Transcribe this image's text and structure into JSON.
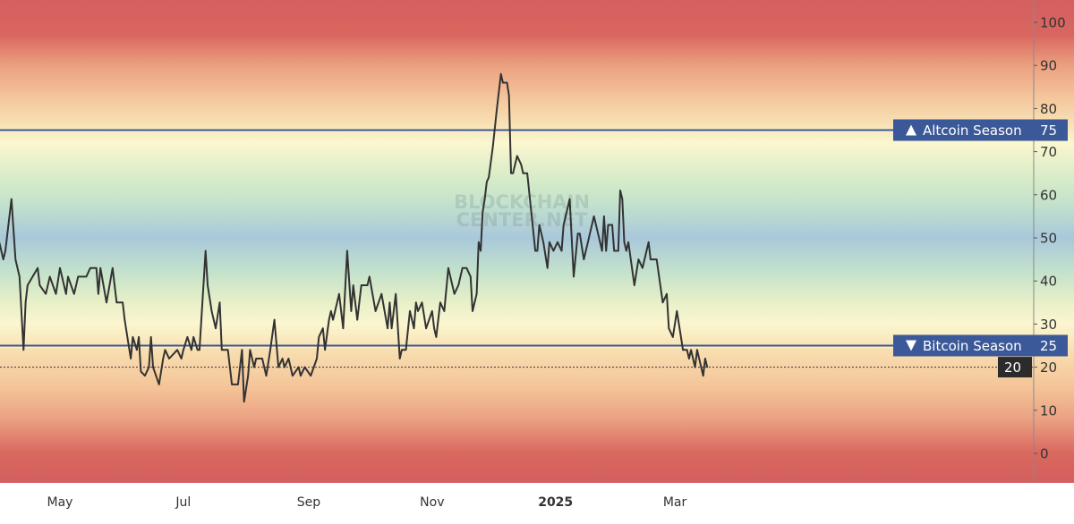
{
  "chart_data": {
    "type": "line",
    "title": "",
    "xlabel": "",
    "ylabel": "",
    "ylim": [
      -7,
      105
    ],
    "yticks": [
      0,
      10,
      20,
      30,
      40,
      50,
      60,
      70,
      80,
      90,
      100
    ],
    "xticks": [
      {
        "label": "May",
        "date": "2024-05-01",
        "bold": false
      },
      {
        "label": "Jul",
        "date": "2024-07-01",
        "bold": false
      },
      {
        "label": "Sep",
        "date": "2024-09-01",
        "bold": false
      },
      {
        "label": "Nov",
        "date": "2024-11-01",
        "bold": false
      },
      {
        "label": "2025",
        "date": "2025-01-01",
        "bold": true
      },
      {
        "label": "Mar",
        "date": "2025-03-01",
        "bold": false
      }
    ],
    "xlim": [
      "2024-04-01",
      "2025-08-10"
    ],
    "grid": false,
    "line_color": "#333333",
    "thresholds": [
      {
        "label": "Altcoin Season",
        "value": 75,
        "value_label": "75",
        "direction": "up",
        "color": "#3b5998"
      },
      {
        "label": "Bitcoin Season",
        "value": 25,
        "value_label": "25",
        "direction": "down",
        "color": "#3b5998"
      }
    ],
    "current": {
      "value": 20,
      "label": "20",
      "color": "#2b2b2b"
    },
    "background_bands": [
      {
        "value": 105,
        "color": "#d45f5f"
      },
      {
        "value": 97,
        "color": "#d9675f"
      },
      {
        "value": 90,
        "color": "#eba080"
      },
      {
        "value": 82,
        "color": "#f5c89e"
      },
      {
        "value": 76,
        "color": "#f8e3b6"
      },
      {
        "value": 72,
        "color": "#faf7d0"
      },
      {
        "value": 64,
        "color": "#d8ecc8"
      },
      {
        "value": 58,
        "color": "#c3e2cc"
      },
      {
        "value": 50,
        "color": "#a9c8da"
      },
      {
        "value": 42,
        "color": "#c4e2cb"
      },
      {
        "value": 35,
        "color": "#e8f0c8"
      },
      {
        "value": 30,
        "color": "#fbf6d0"
      },
      {
        "value": 24,
        "color": "#f8dfb1"
      },
      {
        "value": 15,
        "color": "#f4c397"
      },
      {
        "value": 8,
        "color": "#eba183"
      },
      {
        "value": 0,
        "color": "#d9685f"
      },
      {
        "value": -7,
        "color": "#d45f5f"
      }
    ],
    "watermark": [
      "BLOCKCHAIN",
      "CENTER.NET"
    ],
    "series": [
      {
        "points": [
          [
            "2024-04-01",
            49
          ],
          [
            "2024-04-03",
            45
          ],
          [
            "2024-04-04",
            47
          ],
          [
            "2024-04-07",
            59
          ],
          [
            "2024-04-09",
            45
          ],
          [
            "2024-04-11",
            41
          ],
          [
            "2024-04-13",
            24
          ],
          [
            "2024-04-14",
            35
          ],
          [
            "2024-04-15",
            39
          ],
          [
            "2024-04-20",
            43
          ],
          [
            "2024-04-21",
            39
          ],
          [
            "2024-04-24",
            37
          ],
          [
            "2024-04-26",
            41
          ],
          [
            "2024-04-29",
            37
          ],
          [
            "2024-05-01",
            43
          ],
          [
            "2024-05-04",
            37
          ],
          [
            "2024-05-05",
            41
          ],
          [
            "2024-05-08",
            37
          ],
          [
            "2024-05-10",
            41
          ],
          [
            "2024-05-14",
            41
          ],
          [
            "2024-05-16",
            43
          ],
          [
            "2024-05-19",
            43
          ],
          [
            "2024-05-20",
            37
          ],
          [
            "2024-05-21",
            43
          ],
          [
            "2024-05-24",
            35
          ],
          [
            "2024-05-27",
            43
          ],
          [
            "2024-05-29",
            35
          ],
          [
            "2024-06-01",
            35
          ],
          [
            "2024-06-02",
            31
          ],
          [
            "2024-06-05",
            22
          ],
          [
            "2024-06-06",
            27
          ],
          [
            "2024-06-08",
            24
          ],
          [
            "2024-06-09",
            27
          ],
          [
            "2024-06-10",
            19
          ],
          [
            "2024-06-12",
            18
          ],
          [
            "2024-06-14",
            20
          ],
          [
            "2024-06-15",
            27
          ],
          [
            "2024-06-16",
            20
          ],
          [
            "2024-06-19",
            16
          ],
          [
            "2024-06-21",
            22
          ],
          [
            "2024-06-22",
            24
          ],
          [
            "2024-06-24",
            22
          ],
          [
            "2024-06-28",
            24
          ],
          [
            "2024-06-30",
            22
          ],
          [
            "2024-07-01",
            24
          ],
          [
            "2024-07-03",
            27
          ],
          [
            "2024-07-05",
            24
          ],
          [
            "2024-07-06",
            27
          ],
          [
            "2024-07-08",
            24
          ],
          [
            "2024-07-09",
            24
          ],
          [
            "2024-07-12",
            47
          ],
          [
            "2024-07-13",
            39
          ],
          [
            "2024-07-15",
            33
          ],
          [
            "2024-07-17",
            29
          ],
          [
            "2024-07-19",
            35
          ],
          [
            "2024-07-20",
            24
          ],
          [
            "2024-07-23",
            24
          ],
          [
            "2024-07-25",
            16
          ],
          [
            "2024-07-28",
            16
          ],
          [
            "2024-07-30",
            24
          ],
          [
            "2024-07-31",
            12
          ],
          [
            "2024-08-02",
            18
          ],
          [
            "2024-08-03",
            24
          ],
          [
            "2024-08-05",
            20
          ],
          [
            "2024-08-06",
            22
          ],
          [
            "2024-08-09",
            22
          ],
          [
            "2024-08-11",
            18
          ],
          [
            "2024-08-13",
            24
          ],
          [
            "2024-08-15",
            31
          ],
          [
            "2024-08-17",
            20
          ],
          [
            "2024-08-19",
            22
          ],
          [
            "2024-08-20",
            20
          ],
          [
            "2024-08-22",
            22
          ],
          [
            "2024-08-24",
            18
          ],
          [
            "2024-08-27",
            20
          ],
          [
            "2024-08-28",
            18
          ],
          [
            "2024-08-30",
            20
          ],
          [
            "2024-09-02",
            18
          ],
          [
            "2024-09-05",
            22
          ],
          [
            "2024-09-06",
            27
          ],
          [
            "2024-09-08",
            29
          ],
          [
            "2024-09-09",
            24
          ],
          [
            "2024-09-11",
            31
          ],
          [
            "2024-09-12",
            33
          ],
          [
            "2024-09-13",
            31
          ],
          [
            "2024-09-16",
            37
          ],
          [
            "2024-09-18",
            29
          ],
          [
            "2024-09-20",
            47
          ],
          [
            "2024-09-22",
            33
          ],
          [
            "2024-09-23",
            39
          ],
          [
            "2024-09-25",
            31
          ],
          [
            "2024-09-27",
            39
          ],
          [
            "2024-09-30",
            39
          ],
          [
            "2024-10-01",
            41
          ],
          [
            "2024-10-04",
            33
          ],
          [
            "2024-10-07",
            37
          ],
          [
            "2024-10-10",
            29
          ],
          [
            "2024-10-11",
            35
          ],
          [
            "2024-10-12",
            29
          ],
          [
            "2024-10-14",
            37
          ],
          [
            "2024-10-16",
            22
          ],
          [
            "2024-10-17",
            24
          ],
          [
            "2024-10-19",
            24
          ],
          [
            "2024-10-21",
            33
          ],
          [
            "2024-10-23",
            29
          ],
          [
            "2024-10-24",
            35
          ],
          [
            "2024-10-25",
            33
          ],
          [
            "2024-10-27",
            35
          ],
          [
            "2024-10-29",
            29
          ],
          [
            "2024-11-01",
            33
          ],
          [
            "2024-11-02",
            29
          ],
          [
            "2024-11-03",
            27
          ],
          [
            "2024-11-05",
            35
          ],
          [
            "2024-11-07",
            33
          ],
          [
            "2024-11-09",
            43
          ],
          [
            "2024-11-11",
            39
          ],
          [
            "2024-11-12",
            37
          ],
          [
            "2024-11-14",
            39
          ],
          [
            "2024-11-16",
            43
          ],
          [
            "2024-11-18",
            43
          ],
          [
            "2024-11-20",
            41
          ],
          [
            "2024-11-21",
            33
          ],
          [
            "2024-11-23",
            37
          ],
          [
            "2024-11-24",
            49
          ],
          [
            "2024-11-25",
            47
          ],
          [
            "2024-11-26",
            56
          ],
          [
            "2024-11-27",
            59
          ],
          [
            "2024-11-28",
            63
          ],
          [
            "2024-11-29",
            64
          ],
          [
            "2024-12-01",
            71
          ],
          [
            "2024-12-03",
            80
          ],
          [
            "2024-12-05",
            88
          ],
          [
            "2024-12-06",
            86
          ],
          [
            "2024-12-08",
            86
          ],
          [
            "2024-12-09",
            83
          ],
          [
            "2024-12-10",
            65
          ],
          [
            "2024-12-11",
            65
          ],
          [
            "2024-12-13",
            69
          ],
          [
            "2024-12-15",
            67
          ],
          [
            "2024-12-16",
            65
          ],
          [
            "2024-12-18",
            65
          ],
          [
            "2024-12-22",
            47
          ],
          [
            "2024-12-23",
            47
          ],
          [
            "2024-12-24",
            53
          ],
          [
            "2024-12-26",
            49
          ],
          [
            "2024-12-28",
            43
          ],
          [
            "2024-12-29",
            49
          ],
          [
            "2024-12-31",
            47
          ],
          [
            "2025-01-02",
            49
          ],
          [
            "2025-01-04",
            47
          ],
          [
            "2025-01-05",
            53
          ],
          [
            "2025-01-06",
            55
          ],
          [
            "2025-01-08",
            59
          ],
          [
            "2025-01-10",
            41
          ],
          [
            "2025-01-12",
            51
          ],
          [
            "2025-01-13",
            51
          ],
          [
            "2025-01-15",
            45
          ],
          [
            "2025-01-17",
            49
          ],
          [
            "2025-01-18",
            51
          ],
          [
            "2025-01-20",
            55
          ],
          [
            "2025-01-22",
            51
          ],
          [
            "2025-01-24",
            47
          ],
          [
            "2025-01-25",
            55
          ],
          [
            "2025-01-26",
            47
          ],
          [
            "2025-01-27",
            53
          ],
          [
            "2025-01-29",
            53
          ],
          [
            "2025-01-30",
            47
          ],
          [
            "2025-02-01",
            47
          ],
          [
            "2025-02-02",
            61
          ],
          [
            "2025-02-03",
            59
          ],
          [
            "2025-02-04",
            49
          ],
          [
            "2025-02-05",
            47
          ],
          [
            "2025-02-06",
            49
          ],
          [
            "2025-02-09",
            39
          ],
          [
            "2025-02-11",
            45
          ],
          [
            "2025-02-13",
            43
          ],
          [
            "2025-02-15",
            47
          ],
          [
            "2025-02-16",
            49
          ],
          [
            "2025-02-17",
            45
          ],
          [
            "2025-02-20",
            45
          ],
          [
            "2025-02-23",
            35
          ],
          [
            "2025-02-25",
            37
          ],
          [
            "2025-02-26",
            29
          ],
          [
            "2025-02-28",
            27
          ],
          [
            "2025-03-02",
            33
          ],
          [
            "2025-03-05",
            24
          ],
          [
            "2025-03-07",
            24
          ],
          [
            "2025-03-08",
            22
          ],
          [
            "2025-03-09",
            24
          ],
          [
            "2025-03-11",
            20
          ],
          [
            "2025-03-12",
            24
          ],
          [
            "2025-03-15",
            18
          ],
          [
            "2025-03-16",
            22
          ],
          [
            "2025-03-17",
            20
          ]
        ]
      }
    ]
  }
}
